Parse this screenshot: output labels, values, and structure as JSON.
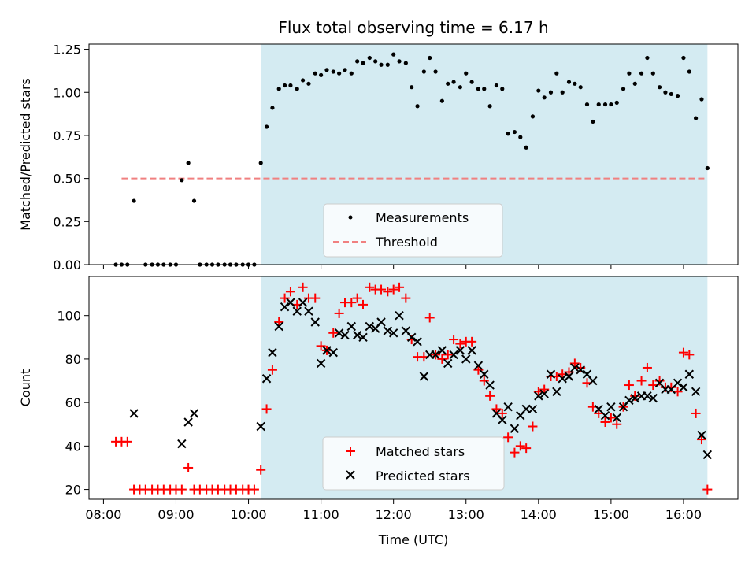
{
  "chart_data": {
    "type": "scatter",
    "title": "Flux total observing time = 6.17 h",
    "xlabel": "Time (UTC)",
    "x_tick_labels": [
      "08:00",
      "09:00",
      "10:00",
      "11:00",
      "12:00",
      "13:00",
      "14:00",
      "15:00",
      "16:00"
    ],
    "x_ticks_hours": [
      8,
      9,
      10,
      11,
      12,
      13,
      14,
      15,
      16
    ],
    "xlim_hours": [
      7.8,
      16.75
    ],
    "observing_window_hours": [
      10.17,
      16.33
    ],
    "colors": {
      "window": "#d4ebf2",
      "measurements": "#000000",
      "threshold": "#f08080",
      "matched": "#ff0000",
      "predicted": "#000000"
    },
    "panels": [
      {
        "id": "ratio",
        "ylabel": "Matched/Predicted stars",
        "ylim": [
          0,
          1.28
        ],
        "y_ticks": [
          0.0,
          0.25,
          0.5,
          0.75,
          1.0,
          1.25
        ],
        "y_tick_labels": [
          "0.00",
          "0.25",
          "0.50",
          "0.75",
          "1.00",
          "1.25"
        ],
        "legend": {
          "position": "lower-center",
          "entries": [
            "Measurements",
            "Threshold"
          ]
        },
        "threshold": {
          "name": "Threshold",
          "y": 0.5,
          "x_range": [
            8.25,
            16.33
          ]
        },
        "series": [
          {
            "name": "Measurements",
            "marker": "dot",
            "x": [
              8.17,
              8.25,
              8.33,
              8.42,
              8.58,
              8.67,
              8.75,
              8.83,
              8.92,
              9.0,
              9.08,
              9.17,
              9.25,
              9.33,
              9.42,
              9.5,
              9.58,
              9.67,
              9.75,
              9.83,
              9.92,
              10.0,
              10.08,
              10.17,
              10.25,
              10.33,
              10.42,
              10.5,
              10.58,
              10.67,
              10.75,
              10.83,
              10.92,
              11.0,
              11.08,
              11.17,
              11.25,
              11.33,
              11.42,
              11.5,
              11.58,
              11.67,
              11.75,
              11.83,
              11.92,
              12.0,
              12.08,
              12.17,
              12.25,
              12.33,
              12.42,
              12.5,
              12.58,
              12.67,
              12.75,
              12.83,
              12.92,
              13.0,
              13.08,
              13.17,
              13.25,
              13.33,
              13.42,
              13.5,
              13.58,
              13.67,
              13.75,
              13.83,
              13.92,
              14.0,
              14.08,
              14.17,
              14.25,
              14.33,
              14.42,
              14.5,
              14.58,
              14.67,
              14.75,
              14.83,
              14.92,
              15.0,
              15.08,
              15.17,
              15.25,
              15.33,
              15.42,
              15.5,
              15.58,
              15.67,
              15.75,
              15.83,
              15.92,
              16.0,
              16.08,
              16.17,
              16.25,
              16.33
            ],
            "y": [
              0,
              0,
              0,
              0.37,
              0,
              0,
              0,
              0,
              0,
              0,
              0.49,
              0.59,
              0.37,
              0,
              0,
              0,
              0,
              0,
              0,
              0,
              0,
              0,
              0,
              0.59,
              0.8,
              0.91,
              1.02,
              1.04,
              1.04,
              1.02,
              1.07,
              1.05,
              1.11,
              1.1,
              1.13,
              1.12,
              1.11,
              1.13,
              1.11,
              1.18,
              1.17,
              1.2,
              1.18,
              1.16,
              1.16,
              1.22,
              1.18,
              1.17,
              1.03,
              0.92,
              1.12,
              1.2,
              1.12,
              0.95,
              1.05,
              1.06,
              1.03,
              1.11,
              1.06,
              1.02,
              1.02,
              0.92,
              1.04,
              1.02,
              0.76,
              0.77,
              0.74,
              0.68,
              0.86,
              1.01,
              0.97,
              1.0,
              1.11,
              1.0,
              1.06,
              1.05,
              1.03,
              0.93,
              0.83,
              0.93,
              0.93,
              0.93,
              0.94,
              1.02,
              1.11,
              1.05,
              1.11,
              1.2,
              1.11,
              1.03,
              1.0,
              0.99,
              0.98,
              1.2,
              1.12,
              0.85,
              0.96,
              0.56
            ]
          }
        ]
      },
      {
        "id": "count",
        "ylabel": "Count",
        "ylim": [
          15.5,
          118
        ],
        "y_ticks": [
          20,
          40,
          60,
          80,
          100
        ],
        "y_tick_labels": [
          "20",
          "40",
          "60",
          "80",
          "100"
        ],
        "legend": {
          "position": "lower-center",
          "entries": [
            "Matched stars",
            "Predicted stars"
          ]
        },
        "series": [
          {
            "name": "Matched stars",
            "marker": "plus",
            "x": [
              8.17,
              8.25,
              8.33,
              8.42,
              8.5,
              8.58,
              8.67,
              8.75,
              8.83,
              8.92,
              9.0,
              9.08,
              9.17,
              9.25,
              9.33,
              9.42,
              9.5,
              9.58,
              9.67,
              9.75,
              9.83,
              9.92,
              10.0,
              10.08,
              10.17,
              10.25,
              10.33,
              10.42,
              10.5,
              10.58,
              10.67,
              10.75,
              10.83,
              10.92,
              11.0,
              11.08,
              11.17,
              11.25,
              11.33,
              11.42,
              11.5,
              11.58,
              11.67,
              11.75,
              11.83,
              11.92,
              12.0,
              12.08,
              12.17,
              12.25,
              12.33,
              12.42,
              12.5,
              12.58,
              12.67,
              12.75,
              12.83,
              12.92,
              13.0,
              13.08,
              13.17,
              13.25,
              13.33,
              13.42,
              13.5,
              13.58,
              13.67,
              13.75,
              13.83,
              13.92,
              14.0,
              14.08,
              14.17,
              14.25,
              14.33,
              14.42,
              14.5,
              14.58,
              14.67,
              14.75,
              14.83,
              14.92,
              15.0,
              15.08,
              15.17,
              15.25,
              15.33,
              15.42,
              15.5,
              15.58,
              15.67,
              15.75,
              15.83,
              15.92,
              16.0,
              16.08,
              16.17,
              16.25,
              16.33
            ],
            "y": [
              42,
              42,
              42,
              20,
              20,
              20,
              20,
              20,
              20,
              20,
              20,
              20,
              30,
              20,
              20,
              20,
              20,
              20,
              20,
              20,
              20,
              20,
              20,
              20,
              29,
              57,
              75,
              97,
              108,
              111,
              105,
              113,
              108,
              108,
              86,
              84,
              92,
              101,
              106,
              106,
              108,
              105,
              113,
              112,
              112,
              111,
              112,
              113,
              108,
              89,
              81,
              81,
              99,
              82,
              80,
              82,
              89,
              87,
              88,
              88,
              75,
              70,
              63,
              57,
              55,
              44,
              37,
              40,
              39,
              49,
              65,
              66,
              72,
              72,
              73,
              74,
              78,
              76,
              69,
              58,
              55,
              51,
              53,
              50,
              58,
              68,
              63,
              70,
              76,
              68,
              70,
              67,
              67,
              65,
              83,
              82,
              55,
              43,
              20
            ]
          },
          {
            "name": "Predicted stars",
            "marker": "cross",
            "x": [
              8.42,
              9.08,
              9.17,
              9.25,
              10.17,
              10.25,
              10.33,
              10.42,
              10.5,
              10.58,
              10.67,
              10.75,
              10.83,
              10.92,
              11.0,
              11.08,
              11.17,
              11.25,
              11.33,
              11.42,
              11.5,
              11.58,
              11.67,
              11.75,
              11.83,
              11.92,
              12.0,
              12.08,
              12.17,
              12.25,
              12.33,
              12.42,
              12.5,
              12.58,
              12.67,
              12.75,
              12.83,
              12.92,
              13.0,
              13.08,
              13.17,
              13.25,
              13.33,
              13.42,
              13.5,
              13.58,
              13.67,
              13.75,
              13.83,
              13.92,
              14.0,
              14.08,
              14.17,
              14.25,
              14.33,
              14.42,
              14.5,
              14.58,
              14.67,
              14.75,
              14.83,
              14.92,
              15.0,
              15.08,
              15.17,
              15.25,
              15.33,
              15.42,
              15.5,
              15.58,
              15.67,
              15.75,
              15.83,
              15.92,
              16.0,
              16.08,
              16.17,
              16.25,
              16.33
            ],
            "y": [
              55,
              41,
              51,
              55,
              49,
              71,
              83,
              95,
              104,
              106,
              102,
              106,
              102,
              97,
              78,
              84,
              83,
              92,
              91,
              95,
              91,
              90,
              95,
              94,
              97,
              93,
              92,
              100,
              93,
              90,
              88,
              72,
              82,
              82,
              84,
              78,
              82,
              84,
              80,
              84,
              77,
              73,
              68,
              55,
              52,
              58,
              48,
              54,
              57,
              57,
              63,
              64,
              73,
              65,
              71,
              72,
              76,
              75,
              73,
              70,
              57,
              54,
              58,
              53,
              58,
              61,
              62,
              63,
              63,
              62,
              69,
              66,
              66,
              69,
              67,
              73,
              65,
              45,
              36
            ]
          }
        ]
      }
    ]
  }
}
